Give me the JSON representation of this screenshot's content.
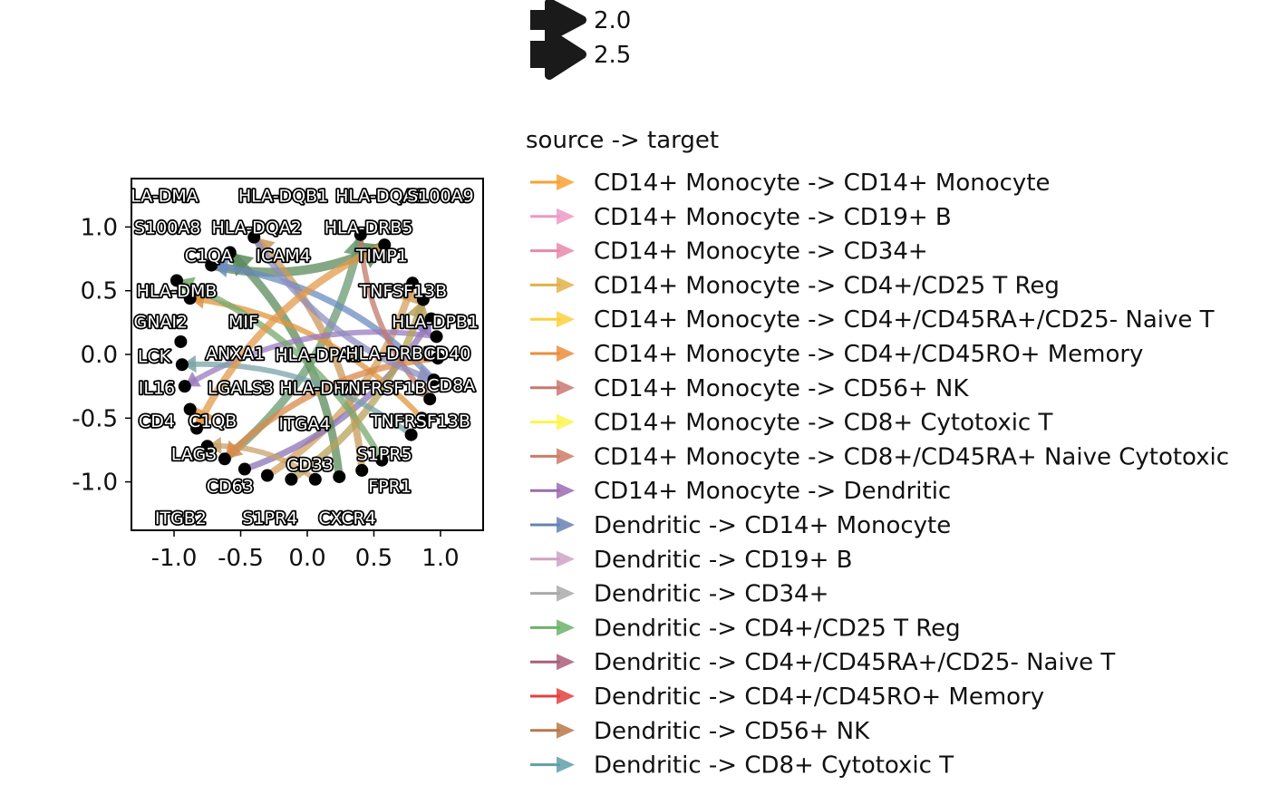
{
  "plot": {
    "x_ticks": [
      "-1.0",
      "-0.5",
      "0.0",
      "0.5",
      "1.0"
    ],
    "x_tick_values": [
      -1.0,
      -0.5,
      0.0,
      0.5,
      1.0
    ],
    "y_ticks": [
      "1.0",
      "0.5",
      "0.0",
      "-0.5",
      "-1.0"
    ],
    "y_tick_values": [
      1.0,
      0.5,
      0.0,
      -0.5,
      -1.0
    ],
    "xlim": [
      -1.32,
      1.32
    ],
    "ylim": [
      -1.38,
      1.38
    ],
    "nodes": [
      {
        "label": "HLA-DMA",
        "x": -1.12,
        "y": 1.25
      },
      {
        "label": "HLA-DQB1",
        "x": -0.18,
        "y": 1.25
      },
      {
        "label": "HLA-DQA1",
        "x": 0.55,
        "y": 1.25
      },
      {
        "label": "S100A9",
        "x": 1.0,
        "y": 1.25
      },
      {
        "label": "S100A8",
        "x": -1.05,
        "y": 1.0
      },
      {
        "label": "HLA-DQA2",
        "x": -0.38,
        "y": 1.0
      },
      {
        "label": "HLA-DRB5",
        "x": 0.46,
        "y": 1.0
      },
      {
        "label": "C1QA",
        "x": -0.74,
        "y": 0.78
      },
      {
        "label": "ICAM4",
        "x": -0.18,
        "y": 0.78
      },
      {
        "label": "TIMP1",
        "x": 0.56,
        "y": 0.78
      },
      {
        "label": "HLA-DMB",
        "x": -0.98,
        "y": 0.5
      },
      {
        "label": "TNFSF13B",
        "x": 0.72,
        "y": 0.5
      },
      {
        "label": "GNAI2",
        "x": -1.1,
        "y": 0.26
      },
      {
        "label": "MIF",
        "x": -0.48,
        "y": 0.26
      },
      {
        "label": "HLA-DPB1",
        "x": 0.96,
        "y": 0.26
      },
      {
        "label": "LCK",
        "x": -1.15,
        "y": -0.01
      },
      {
        "label": "ANXA1",
        "x": -0.54,
        "y": 0.01
      },
      {
        "label": "HLA-DPA1",
        "x": 0.08,
        "y": 0.0
      },
      {
        "label": "HLA-DRB1",
        "x": 0.62,
        "y": 0.01
      },
      {
        "label": "CD40",
        "x": 1.05,
        "y": 0.01
      },
      {
        "label": "IL16",
        "x": -1.13,
        "y": -0.26
      },
      {
        "label": "LGALS3",
        "x": -0.5,
        "y": -0.26
      },
      {
        "label": "HLA-DRA",
        "x": 0.08,
        "y": -0.26
      },
      {
        "label": "TNFRSF1B",
        "x": 0.56,
        "y": -0.26
      },
      {
        "label": "CD8A",
        "x": 1.08,
        "y": -0.24
      },
      {
        "label": "CD4",
        "x": -1.13,
        "y": -0.52
      },
      {
        "label": "C1QB",
        "x": -0.71,
        "y": -0.52
      },
      {
        "label": "ITGA4",
        "x": -0.02,
        "y": -0.54
      },
      {
        "label": "TNFRSF13B",
        "x": 0.85,
        "y": -0.52
      },
      {
        "label": "LAG3",
        "x": -0.85,
        "y": -0.78
      },
      {
        "label": "S1PR5",
        "x": 0.58,
        "y": -0.78
      },
      {
        "label": "CD33",
        "x": 0.02,
        "y": -0.86
      },
      {
        "label": "CD63",
        "x": -0.58,
        "y": -1.03
      },
      {
        "label": "FPR1",
        "x": 0.62,
        "y": -1.03
      },
      {
        "label": "ITGB2",
        "x": -0.95,
        "y": -1.28
      },
      {
        "label": "S1PR4",
        "x": -0.28,
        "y": -1.28
      },
      {
        "label": "CXCR4",
        "x": 0.3,
        "y": -1.28
      }
    ],
    "node_points": [
      [
        -0.95,
        0.1
      ],
      [
        -0.94,
        -0.08
      ],
      [
        -0.92,
        -0.25
      ],
      [
        -0.88,
        -0.43
      ],
      [
        -0.83,
        -0.58
      ],
      [
        -0.75,
        -0.72
      ],
      [
        -0.62,
        -0.82
      ],
      [
        -0.47,
        -0.9
      ],
      [
        -0.3,
        -0.95
      ],
      [
        -0.12,
        -0.98
      ],
      [
        0.06,
        -0.98
      ],
      [
        0.24,
        -0.96
      ],
      [
        0.41,
        -0.91
      ],
      [
        0.56,
        -0.83
      ],
      [
        0.78,
        -0.63
      ],
      [
        0.86,
        -0.5
      ],
      [
        0.92,
        -0.35
      ],
      [
        0.95,
        -0.2
      ],
      [
        0.98,
        -0.03
      ],
      [
        0.97,
        0.14
      ],
      [
        0.93,
        0.28
      ],
      [
        0.87,
        0.43
      ],
      [
        0.79,
        0.56
      ],
      [
        0.58,
        0.86
      ],
      [
        0.4,
        0.94
      ],
      [
        -0.4,
        0.92
      ],
      [
        -0.58,
        0.8
      ],
      [
        -0.72,
        0.7
      ],
      [
        -0.88,
        0.44
      ],
      [
        -0.98,
        0.58
      ]
    ],
    "edges": [
      {
        "from": [
          -0.72,
          0.7
        ],
        "to": [
          0.58,
          0.86
        ],
        "color": "#5b8a5b",
        "w": 10
      },
      {
        "from": [
          -0.62,
          -0.82
        ],
        "to": [
          0.4,
          0.94
        ],
        "color": "#6a9a70",
        "w": 9
      },
      {
        "from": [
          -0.3,
          -0.95
        ],
        "to": [
          0.79,
          0.56
        ],
        "color": "#d4a060",
        "w": 8
      },
      {
        "from": [
          -0.47,
          -0.9
        ],
        "to": [
          0.93,
          0.28
        ],
        "color": "#8a74b8",
        "w": 7
      },
      {
        "from": [
          0.24,
          -0.96
        ],
        "to": [
          -0.58,
          0.8
        ],
        "color": "#5b8a5b",
        "w": 9
      },
      {
        "from": [
          0.41,
          -0.91
        ],
        "to": [
          -0.4,
          0.92
        ],
        "color": "#c99a5a",
        "w": 8
      },
      {
        "from": [
          0.95,
          -0.2
        ],
        "to": [
          -0.72,
          0.7
        ],
        "color": "#6b8cc0",
        "w": 7
      },
      {
        "from": [
          0.86,
          -0.5
        ],
        "to": [
          -0.88,
          0.44
        ],
        "color": "#e0953e",
        "w": 6
      },
      {
        "from": [
          0.97,
          0.14
        ],
        "to": [
          -0.92,
          -0.25
        ],
        "color": "#9a7bbf",
        "w": 6
      },
      {
        "from": [
          0.56,
          -0.83
        ],
        "to": [
          -0.98,
          0.58
        ],
        "color": "#77a86f",
        "w": 7
      },
      {
        "from": [
          -0.12,
          -0.98
        ],
        "to": [
          0.87,
          0.43
        ],
        "color": "#b7a15a",
        "w": 8
      },
      {
        "from": [
          0.06,
          -0.98
        ],
        "to": [
          -0.75,
          -0.72
        ],
        "color": "#c9a26a",
        "w": 6
      },
      {
        "from": [
          0.78,
          -0.63
        ],
        "to": [
          -0.94,
          -0.08
        ],
        "color": "#7aa3a8",
        "w": 6
      },
      {
        "from": [
          0.98,
          -0.03
        ],
        "to": [
          -0.62,
          -0.82
        ],
        "color": "#d98a4a",
        "w": 7
      },
      {
        "from": [
          0.4,
          0.94
        ],
        "to": [
          0.92,
          -0.35
        ],
        "color": "#c07a6a",
        "w": 6
      },
      {
        "from": [
          -0.4,
          0.92
        ],
        "to": [
          0.95,
          -0.2
        ],
        "color": "#8d8fbf",
        "w": 7
      },
      {
        "from": [
          0.58,
          0.86
        ],
        "to": [
          -0.83,
          -0.58
        ],
        "color": "#e39a49",
        "w": 8
      }
    ]
  },
  "legend_width": {
    "entries": [
      {
        "label": "2.0"
      },
      {
        "label": "2.5"
      }
    ]
  },
  "legend_pairs": {
    "title": "source -> target",
    "entries": [
      {
        "label": "CD14+ Monocyte -> CD14+ Monocyte",
        "color": "#f7a234"
      },
      {
        "label": "CD14+ Monocyte -> CD19+ B",
        "color": "#ee99c7"
      },
      {
        "label": "CD14+ Monocyte -> CD34+",
        "color": "#e68aa8"
      },
      {
        "label": "CD14+ Monocyte -> CD4+/CD25 T Reg",
        "color": "#e0b14a"
      },
      {
        "label": "CD14+ Monocyte -> CD4+/CD45RA+/CD25- Naive T",
        "color": "#fbd03d"
      },
      {
        "label": "CD14+ Monocyte -> CD4+/CD45RO+ Memory",
        "color": "#ea8e3b"
      },
      {
        "label": "CD14+ Monocyte -> CD56+ NK",
        "color": "#c97872"
      },
      {
        "label": "CD14+ Monocyte -> CD8+ Cytotoxic T",
        "color": "#fdf54b"
      },
      {
        "label": "CD14+ Monocyte -> CD8+/CD45RA+ Naive Cytotoxic",
        "color": "#cc7d68"
      },
      {
        "label": "CD14+ Monocyte -> Dendritic",
        "color": "#9b6bb0"
      },
      {
        "label": "Dendritic -> CD14+ Monocyte",
        "color": "#6682b3"
      },
      {
        "label": "Dendritic -> CD19+ B",
        "color": "#cfa3c3"
      },
      {
        "label": "Dendritic -> CD34+",
        "color": "#aaaaaa"
      },
      {
        "label": "Dendritic -> CD4+/CD25 T Reg",
        "color": "#6cb36a"
      },
      {
        "label": "Dendritic -> CD4+/CD45RA+/CD25- Naive T",
        "color": "#a85f7a"
      },
      {
        "label": "Dendritic -> CD4+/CD45RO+ Memory",
        "color": "#e2413f"
      },
      {
        "label": "Dendritic -> CD56+ NK",
        "color": "#b8784a"
      },
      {
        "label": "Dendritic -> CD8+ Cytotoxic T",
        "color": "#5f9fa7"
      }
    ]
  }
}
